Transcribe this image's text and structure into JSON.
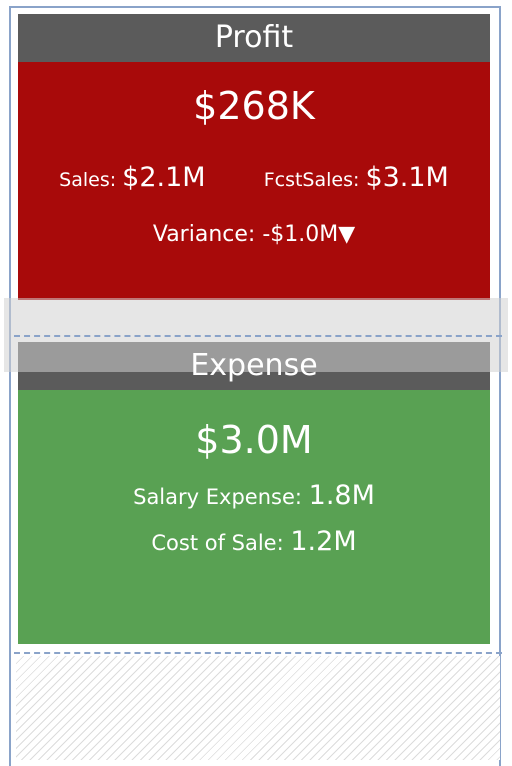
{
  "profit_card": {
    "title": "Profit",
    "value": "$268K",
    "sales_label": "Sales:",
    "sales_value": "$2.1M",
    "fcst_label": "FcstSales:",
    "fcst_value": "$3.1M",
    "variance_label": "Variance:",
    "variance_value": "-$1.0M",
    "variance_arrow": "▼",
    "color": "#a80a0a"
  },
  "expense_card": {
    "title": "Expense",
    "value": "$3.0M",
    "salary_label": "Salary Expense:",
    "salary_value": "1.8M",
    "cost_label": "Cost of Sale:",
    "cost_value": "1.2M",
    "color": "#59a153"
  },
  "colors": {
    "header": "#5b5b5b",
    "border": "#8aa3c9"
  }
}
